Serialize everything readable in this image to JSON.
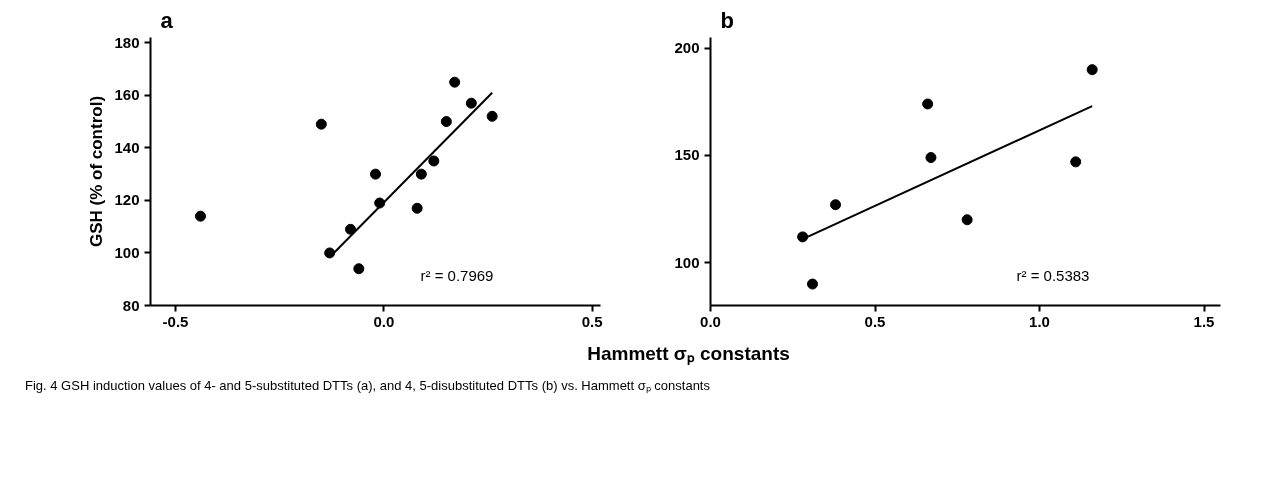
{
  "chart_data": [
    {
      "type": "scatter",
      "title": "a",
      "ylabel": "GSH (% of control)",
      "xlabel": "Hammett σₚ constants",
      "xlim": [
        -0.56,
        0.52
      ],
      "xticks": [
        {
          "value": -0.5,
          "label": "-0.5"
        },
        {
          "value": 0,
          "label": "0.0"
        },
        {
          "value": 0.5,
          "label": "0.5"
        }
      ],
      "ylim": [
        80,
        182
      ],
      "yticks": [
        80,
        100,
        120,
        140,
        160,
        180
      ],
      "grid": false,
      "annotations": [
        "r² = 0.7969"
      ],
      "series": [
        {
          "marker": "circle",
          "color": "#000000",
          "x": [
            -0.44,
            -0.15,
            -0.13,
            -0.08,
            -0.06,
            -0.02,
            -0.01,
            0.08,
            0.09,
            0.12,
            0.15,
            0.17,
            0.21,
            0.26
          ],
          "values": [
            114,
            149,
            100,
            109,
            94,
            130,
            119,
            117,
            130,
            135,
            150,
            165,
            157,
            152
          ]
        },
        {
          "type": "line",
          "color": "#000000",
          "x": [
            -0.12,
            0.26
          ],
          "values": [
            100,
            161
          ]
        }
      ]
    },
    {
      "type": "scatter",
      "title": "b",
      "xlim": [
        0,
        1.55
      ],
      "xticks": [
        {
          "value": 0,
          "label": "0.0"
        },
        {
          "value": 0.5,
          "label": "0.5"
        },
        {
          "value": 1,
          "label": "1.0"
        },
        {
          "value": 1.5,
          "label": "1.5"
        }
      ],
      "ylim": [
        80,
        205
      ],
      "yticks": [
        100,
        150,
        200
      ],
      "grid": false,
      "annotations": [
        "r² = 0.5383",
        "Fig. 4 GSH induction values of 4- and 5-substituted DTTs (a), and 4, 5-disubstituted DTTs (b) vs. Hammett σₚ constants"
      ],
      "series": [
        {
          "marker": "circle",
          "color": "#000000",
          "x": [
            0.28,
            0.31,
            0.38,
            0.66,
            0.67,
            0.78,
            1.11,
            1.16
          ],
          "values": [
            112,
            90,
            127,
            174,
            149,
            120,
            147,
            190
          ]
        },
        {
          "type": "line",
          "color": "#000000",
          "x": [
            0.28,
            1.16
          ],
          "values": [
            111,
            173
          ]
        }
      ]
    }
  ]
}
